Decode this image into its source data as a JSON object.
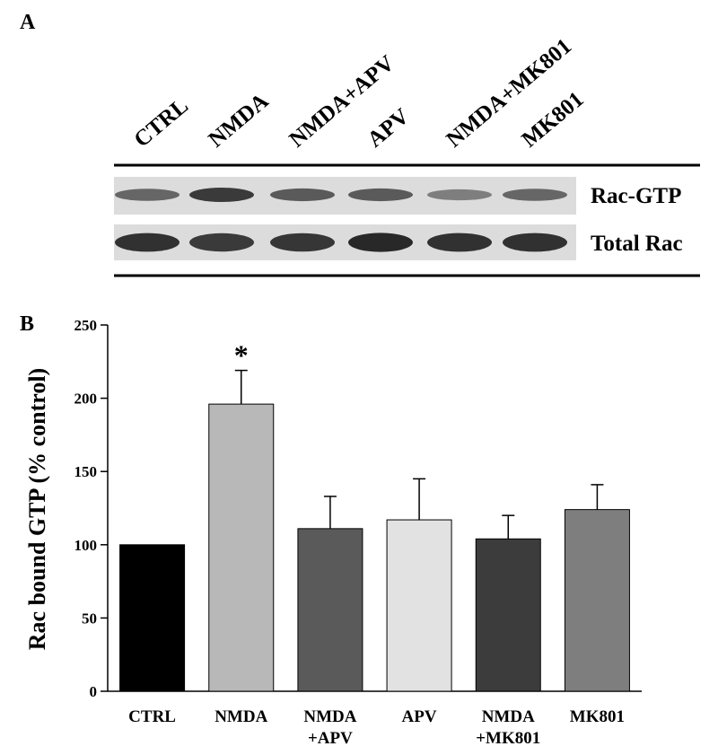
{
  "panel_a": {
    "label": "A",
    "lanes": [
      "CTRL",
      "NMDA",
      "NMDA+APV",
      "APV",
      "NMDA+MK801",
      "MK801"
    ],
    "rows": [
      {
        "label": "Rac-GTP",
        "band_intensity": [
          0.55,
          0.8,
          0.62,
          0.62,
          0.42,
          0.55
        ]
      },
      {
        "label": "Total Rac",
        "band_intensity": [
          0.85,
          0.8,
          0.82,
          0.9,
          0.85,
          0.85
        ]
      }
    ]
  },
  "chart_data": {
    "type": "bar",
    "panel_label": "B",
    "categories": [
      "CTRL",
      "NMDA",
      "NMDA\n+APV",
      "APV",
      "NMDA\n+MK801",
      "MK801"
    ],
    "values": [
      100,
      196,
      111,
      117,
      104,
      124
    ],
    "errors": [
      0,
      23,
      22,
      28,
      16,
      17
    ],
    "colors": [
      "#000000",
      "#b8b8b8",
      "#5a5a5a",
      "#e2e2e2",
      "#3c3c3c",
      "#7e7e7e"
    ],
    "significance": [
      "",
      "*",
      "",
      "",
      "",
      ""
    ],
    "ylabel": "Rac bound GTP (% control)",
    "xlabel": "",
    "ylim": [
      0,
      250
    ],
    "yticks": [
      0,
      50,
      100,
      150,
      200,
      250
    ],
    "grid": false
  }
}
